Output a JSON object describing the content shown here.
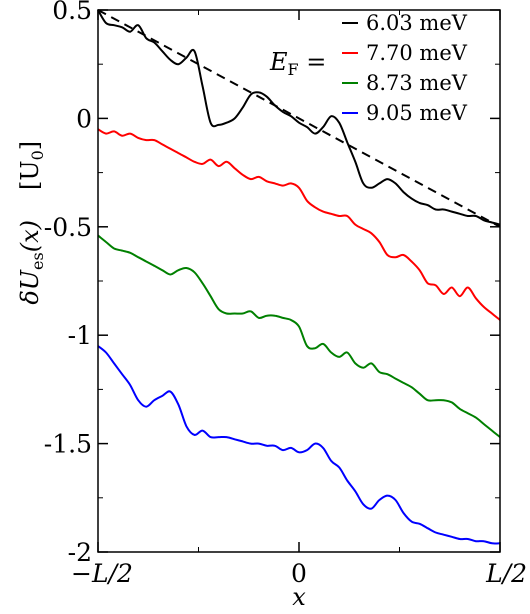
{
  "chart_data": {
    "type": "line",
    "xlabel": "x",
    "ylabel_main": "δU",
    "ylabel_sub": "es",
    "ylabel_arg": "(x)",
    "ylabel_units": "[U",
    "ylabel_units_sub": "0",
    "ylabel_units_close": "]",
    "x_ticks": [
      {
        "value": -0.5,
        "label": "−L/2"
      },
      {
        "value": 0,
        "label": "0"
      },
      {
        "value": 0.5,
        "label": "L/2"
      }
    ],
    "y_ticks": [
      {
        "value": 0.5,
        "label": "0.5"
      },
      {
        "value": 0,
        "label": "0"
      },
      {
        "value": -0.5,
        "label": "-0.5"
      },
      {
        "value": -1,
        "label": "-1"
      },
      {
        "value": -1.5,
        "label": "-1.5"
      },
      {
        "value": -2,
        "label": "-2"
      }
    ],
    "xlim": [
      -0.5,
      0.5
    ],
    "ylim": [
      -2,
      0.5
    ],
    "legend_prefix": "E",
    "legend_prefix_sub": "F",
    "legend_prefix_eq": " =",
    "legend_position": "top-right",
    "series": [
      {
        "name": "6.03 meV",
        "color": "#000000",
        "style": "solid",
        "x": [
          -0.5,
          -0.48,
          -0.46,
          -0.44,
          -0.42,
          -0.4,
          -0.38,
          -0.36,
          -0.34,
          -0.32,
          -0.3,
          -0.28,
          -0.26,
          -0.24,
          -0.22,
          -0.2,
          -0.18,
          -0.16,
          -0.14,
          -0.12,
          -0.1,
          -0.08,
          -0.06,
          -0.04,
          -0.02,
          0,
          0.02,
          0.04,
          0.06,
          0.08,
          0.1,
          0.12,
          0.14,
          0.16,
          0.18,
          0.2,
          0.22,
          0.24,
          0.26,
          0.28,
          0.3,
          0.32,
          0.34,
          0.36,
          0.38,
          0.4,
          0.42,
          0.44,
          0.46,
          0.48,
          0.5
        ],
        "y": [
          0.5,
          0.44,
          0.43,
          0.42,
          0.4,
          0.43,
          0.37,
          0.35,
          0.31,
          0.27,
          0.25,
          0.28,
          0.31,
          0.15,
          -0.02,
          -0.03,
          -0.02,
          0,
          0.05,
          0.11,
          0.12,
          0.1,
          0.06,
          0.03,
          0.01,
          -0.02,
          -0.04,
          -0.07,
          -0.04,
          0.01,
          -0.02,
          -0.11,
          -0.2,
          -0.3,
          -0.32,
          -0.3,
          -0.28,
          -0.3,
          -0.34,
          -0.37,
          -0.39,
          -0.4,
          -0.42,
          -0.42,
          -0.43,
          -0.44,
          -0.45,
          -0.45,
          -0.47,
          -0.48,
          -0.49
        ]
      },
      {
        "name": "7.70 meV",
        "color": "#ff0000",
        "style": "solid",
        "x": [
          -0.5,
          -0.48,
          -0.46,
          -0.44,
          -0.42,
          -0.4,
          -0.38,
          -0.36,
          -0.34,
          -0.32,
          -0.3,
          -0.28,
          -0.26,
          -0.24,
          -0.22,
          -0.2,
          -0.18,
          -0.16,
          -0.14,
          -0.12,
          -0.1,
          -0.08,
          -0.06,
          -0.04,
          -0.02,
          0,
          0.02,
          0.04,
          0.06,
          0.08,
          0.1,
          0.12,
          0.14,
          0.16,
          0.18,
          0.2,
          0.22,
          0.24,
          0.26,
          0.28,
          0.3,
          0.32,
          0.34,
          0.36,
          0.38,
          0.4,
          0.42,
          0.44,
          0.46,
          0.48,
          0.5
        ],
        "y": [
          -0.05,
          -0.07,
          -0.06,
          -0.08,
          -0.07,
          -0.09,
          -0.1,
          -0.1,
          -0.12,
          -0.14,
          -0.16,
          -0.18,
          -0.2,
          -0.21,
          -0.19,
          -0.22,
          -0.2,
          -0.23,
          -0.26,
          -0.28,
          -0.27,
          -0.29,
          -0.3,
          -0.31,
          -0.3,
          -0.32,
          -0.38,
          -0.41,
          -0.43,
          -0.44,
          -0.45,
          -0.45,
          -0.49,
          -0.51,
          -0.53,
          -0.57,
          -0.63,
          -0.64,
          -0.63,
          -0.66,
          -0.7,
          -0.76,
          -0.77,
          -0.81,
          -0.78,
          -0.82,
          -0.78,
          -0.83,
          -0.87,
          -0.9,
          -0.93
        ]
      },
      {
        "name": "8.73 meV",
        "color": "#008000",
        "style": "solid",
        "x": [
          -0.5,
          -0.48,
          -0.46,
          -0.44,
          -0.42,
          -0.4,
          -0.38,
          -0.36,
          -0.34,
          -0.32,
          -0.3,
          -0.28,
          -0.26,
          -0.24,
          -0.22,
          -0.2,
          -0.18,
          -0.16,
          -0.14,
          -0.12,
          -0.1,
          -0.08,
          -0.06,
          -0.04,
          -0.02,
          0,
          0.02,
          0.04,
          0.06,
          0.08,
          0.1,
          0.12,
          0.14,
          0.16,
          0.18,
          0.2,
          0.22,
          0.24,
          0.26,
          0.28,
          0.3,
          0.32,
          0.34,
          0.36,
          0.38,
          0.4,
          0.42,
          0.44,
          0.46,
          0.48,
          0.5
        ],
        "y": [
          -0.54,
          -0.57,
          -0.6,
          -0.61,
          -0.62,
          -0.64,
          -0.66,
          -0.68,
          -0.7,
          -0.72,
          -0.7,
          -0.69,
          -0.71,
          -0.76,
          -0.82,
          -0.88,
          -0.9,
          -0.9,
          -0.9,
          -0.89,
          -0.92,
          -0.91,
          -0.91,
          -0.92,
          -0.93,
          -0.96,
          -1.05,
          -1.06,
          -1.04,
          -1.08,
          -1.1,
          -1.08,
          -1.13,
          -1.15,
          -1.13,
          -1.17,
          -1.18,
          -1.2,
          -1.22,
          -1.24,
          -1.27,
          -1.3,
          -1.3,
          -1.3,
          -1.31,
          -1.34,
          -1.36,
          -1.38,
          -1.41,
          -1.44,
          -1.47
        ]
      },
      {
        "name": "9.05 meV",
        "color": "#0000ff",
        "style": "solid",
        "x": [
          -0.5,
          -0.48,
          -0.46,
          -0.44,
          -0.42,
          -0.4,
          -0.38,
          -0.36,
          -0.34,
          -0.32,
          -0.3,
          -0.28,
          -0.26,
          -0.24,
          -0.22,
          -0.2,
          -0.18,
          -0.16,
          -0.14,
          -0.12,
          -0.1,
          -0.08,
          -0.06,
          -0.04,
          -0.02,
          0,
          0.02,
          0.04,
          0.06,
          0.08,
          0.1,
          0.12,
          0.14,
          0.16,
          0.18,
          0.2,
          0.22,
          0.24,
          0.26,
          0.28,
          0.3,
          0.32,
          0.34,
          0.36,
          0.38,
          0.4,
          0.42,
          0.44,
          0.46,
          0.48,
          0.5
        ],
        "y": [
          -1.05,
          -1.08,
          -1.13,
          -1.18,
          -1.23,
          -1.3,
          -1.33,
          -1.3,
          -1.28,
          -1.26,
          -1.32,
          -1.42,
          -1.46,
          -1.44,
          -1.47,
          -1.47,
          -1.47,
          -1.48,
          -1.49,
          -1.5,
          -1.5,
          -1.51,
          -1.51,
          -1.53,
          -1.52,
          -1.54,
          -1.53,
          -1.5,
          -1.52,
          -1.58,
          -1.61,
          -1.67,
          -1.72,
          -1.78,
          -1.8,
          -1.76,
          -1.74,
          -1.76,
          -1.82,
          -1.86,
          -1.87,
          -1.89,
          -1.91,
          -1.92,
          -1.93,
          -1.94,
          -1.94,
          -1.95,
          -1.95,
          -1.96,
          -1.96
        ]
      },
      {
        "name": "",
        "color": "#000000",
        "style": "dashed",
        "x": [
          -0.5,
          0.5
        ],
        "y": [
          0.5,
          -0.5
        ]
      }
    ]
  }
}
